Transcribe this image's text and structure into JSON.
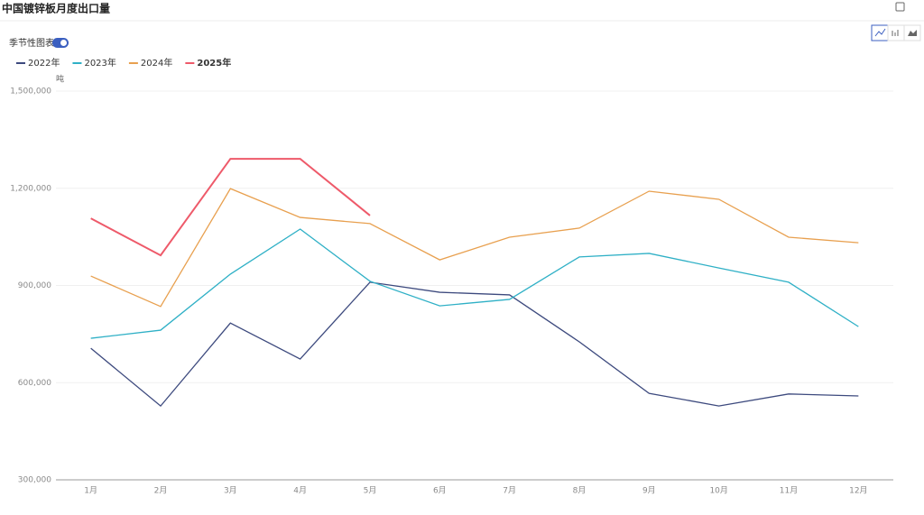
{
  "title": "中国镀锌板月度出口量",
  "toggle_label": "季节性图表",
  "chart_data": {
    "type": "line",
    "y_unit": "吨",
    "categories": [
      "1月",
      "2月",
      "3月",
      "4月",
      "5月",
      "6月",
      "7月",
      "8月",
      "9月",
      "10月",
      "11月",
      "12月"
    ],
    "series": [
      {
        "name": "2022年",
        "color": "#3d4a7e",
        "values": [
          706000,
          528000,
          784000,
          673000,
          910000,
          879000,
          871000,
          726000,
          567000,
          528000,
          565000,
          559000
        ]
      },
      {
        "name": "2023年",
        "color": "#2fb0c6",
        "values": [
          737000,
          762000,
          935000,
          1074000,
          913000,
          837000,
          857000,
          988000,
          999000,
          954000,
          910000,
          773000
        ]
      },
      {
        "name": "2024年",
        "color": "#e8a04f",
        "values": [
          929000,
          835000,
          1199000,
          1110000,
          1091000,
          979000,
          1049000,
          1077000,
          1191000,
          1166000,
          1049000,
          1032000
        ]
      },
      {
        "name": "2025年",
        "color": "#ee5a6a",
        "values": [
          1107000,
          993000,
          1291000,
          1291000,
          1116000,
          null,
          null,
          null,
          null,
          null,
          null,
          null
        ]
      }
    ],
    "ylim": [
      300000,
      1500000
    ],
    "yticks": [
      {
        "value": 300000,
        "label": "300,000"
      },
      {
        "value": 600000,
        "label": "600,000"
      },
      {
        "value": 900000,
        "label": "900,000"
      },
      {
        "value": 1200000,
        "label": "1,200,000"
      },
      {
        "value": 1500000,
        "label": "1,500,000"
      }
    ],
    "grid": true
  }
}
